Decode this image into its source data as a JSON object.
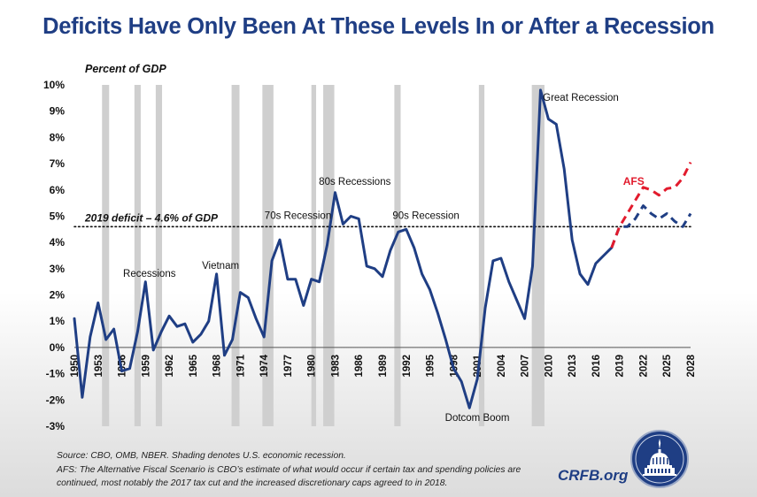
{
  "title": "Deficits Have Only Been At These Levels In or After a Recession",
  "chart_data": {
    "type": "line",
    "ylabel": "Percent of GDP",
    "ylim": [
      -3,
      10
    ],
    "yticks": [
      -3,
      -2,
      -1,
      0,
      1,
      2,
      3,
      4,
      5,
      6,
      7,
      8,
      9,
      10
    ],
    "ytick_labels": [
      "-3%",
      "-2%",
      "-1%",
      "0%",
      "1%",
      "2%",
      "3%",
      "4%",
      "5%",
      "6%",
      "7%",
      "8%",
      "9%",
      "10%"
    ],
    "xlim": [
      1950,
      2028
    ],
    "xticks": [
      1950,
      1953,
      1956,
      1959,
      1962,
      1965,
      1968,
      1971,
      1974,
      1977,
      1980,
      1983,
      1986,
      1989,
      1992,
      1995,
      1998,
      2001,
      2004,
      2007,
      2010,
      2013,
      2016,
      2019,
      2022,
      2025,
      2028
    ],
    "xtick_labels": [
      "1950",
      "1953",
      "1956",
      "1959",
      "1962",
      "1965",
      "1968",
      "1971",
      "1974",
      "1977",
      "1980",
      "1983",
      "1986",
      "1989",
      "1992",
      "1995",
      "1998",
      "2001",
      "2004",
      "2007",
      "2010",
      "2013",
      "2016",
      "2019",
      "2022",
      "2025",
      "2028"
    ],
    "recessions": [
      [
        1953.5,
        1954.4
      ],
      [
        1957.6,
        1958.4
      ],
      [
        1960.3,
        1961.1
      ],
      [
        1969.9,
        1970.9
      ],
      [
        1973.8,
        1975.2
      ],
      [
        1980.0,
        1980.6
      ],
      [
        1981.5,
        1982.9
      ],
      [
        1990.5,
        1991.3
      ],
      [
        2001.2,
        2001.9
      ],
      [
        2007.9,
        2009.5
      ]
    ],
    "series": [
      {
        "name": "",
        "style": "solid",
        "color": "#1f3e84",
        "points": [
          [
            1950,
            1.1
          ],
          [
            1951,
            -1.9
          ],
          [
            1952,
            0.4
          ],
          [
            1953,
            1.7
          ],
          [
            1954,
            0.3
          ],
          [
            1955,
            0.7
          ],
          [
            1956,
            -0.9
          ],
          [
            1957,
            -0.8
          ],
          [
            1958,
            0.6
          ],
          [
            1959,
            2.5
          ],
          [
            1960,
            -0.1
          ],
          [
            1961,
            0.6
          ],
          [
            1962,
            1.2
          ],
          [
            1963,
            0.8
          ],
          [
            1964,
            0.9
          ],
          [
            1965,
            0.2
          ],
          [
            1966,
            0.5
          ],
          [
            1967,
            1.0
          ],
          [
            1968,
            2.8
          ],
          [
            1969,
            -0.3
          ],
          [
            1970,
            0.3
          ],
          [
            1971,
            2.1
          ],
          [
            1972,
            1.9
          ],
          [
            1973,
            1.1
          ],
          [
            1974,
            0.4
          ],
          [
            1975,
            3.3
          ],
          [
            1976,
            4.1
          ],
          [
            1977,
            2.6
          ],
          [
            1978,
            2.6
          ],
          [
            1979,
            1.6
          ],
          [
            1980,
            2.6
          ],
          [
            1981,
            2.5
          ],
          [
            1982,
            3.9
          ],
          [
            1983,
            5.9
          ],
          [
            1984,
            4.7
          ],
          [
            1985,
            5.0
          ],
          [
            1986,
            4.9
          ],
          [
            1987,
            3.1
          ],
          [
            1988,
            3.0
          ],
          [
            1989,
            2.7
          ],
          [
            1990,
            3.7
          ],
          [
            1991,
            4.4
          ],
          [
            1992,
            4.5
          ],
          [
            1993,
            3.8
          ],
          [
            1994,
            2.8
          ],
          [
            1995,
            2.2
          ],
          [
            1996,
            1.3
          ],
          [
            1997,
            0.3
          ],
          [
            1998,
            -0.8
          ],
          [
            1999,
            -1.3
          ],
          [
            2000,
            -2.3
          ],
          [
            2001,
            -1.2
          ],
          [
            2002,
            1.5
          ],
          [
            2003,
            3.3
          ],
          [
            2004,
            3.4
          ],
          [
            2005,
            2.5
          ],
          [
            2006,
            1.8
          ],
          [
            2007,
            1.1
          ],
          [
            2008,
            3.1
          ],
          [
            2009,
            9.8
          ],
          [
            2010,
            8.7
          ],
          [
            2011,
            8.5
          ],
          [
            2012,
            6.8
          ],
          [
            2013,
            4.1
          ],
          [
            2014,
            2.8
          ],
          [
            2015,
            2.4
          ],
          [
            2016,
            3.2
          ],
          [
            2017,
            3.5
          ],
          [
            2018,
            3.8
          ]
        ]
      },
      {
        "name": "",
        "style": "dashed",
        "color": "#1f3e84",
        "points": [
          [
            2018,
            3.8
          ],
          [
            2019,
            4.6
          ],
          [
            2020,
            4.6
          ],
          [
            2021,
            4.9
          ],
          [
            2022,
            5.4
          ],
          [
            2023,
            5.1
          ],
          [
            2024,
            4.9
          ],
          [
            2025,
            5.1
          ],
          [
            2026,
            4.8
          ],
          [
            2027,
            4.6
          ],
          [
            2028,
            5.1
          ]
        ]
      },
      {
        "name": "AFS",
        "style": "dashed",
        "color": "#e21b2d",
        "points": [
          [
            2018,
            3.8
          ],
          [
            2019,
            4.6
          ],
          [
            2020,
            5.1
          ],
          [
            2021,
            5.6
          ],
          [
            2022,
            6.1
          ],
          [
            2023,
            6.0
          ],
          [
            2024,
            5.8
          ],
          [
            2025,
            6.05
          ],
          [
            2026,
            6.1
          ],
          [
            2027,
            6.45
          ],
          [
            2028,
            7.05
          ]
        ]
      }
    ],
    "reference_line": {
      "value": 4.6,
      "label": "2019 deficit – 4.6% of GDP",
      "style": "dotted"
    },
    "annotations": [
      {
        "text": "Recessions",
        "x": 1959.5,
        "y": 2.7
      },
      {
        "text": "Vietnam",
        "x": 1968.5,
        "y": 3.0
      },
      {
        "text": "70s Recession",
        "x": 1978.3,
        "y": 4.9
      },
      {
        "text": "80s Recessions",
        "x": 1985.5,
        "y": 6.2
      },
      {
        "text": "90s Recession",
        "x": 1994.5,
        "y": 4.9
      },
      {
        "text": "Dotcom Boom",
        "x": 2001.0,
        "y": -2.8
      },
      {
        "text": "Great Recession",
        "x": 2009.3,
        "y": 9.4,
        "anchor": "start"
      },
      {
        "text": "AFS",
        "x": 2020.8,
        "y": 6.2,
        "emphasis": true
      }
    ]
  },
  "footer": {
    "source": "Source: CBO, OMB, NBER. Shading denotes U.S. economic recession.",
    "afs_note": "AFS: The Alternative Fiscal Scenario is CBO’s estimate of what would occur if certain tax and spending policies are continued, most notably the 2017 tax cut and the increased discretionary caps agreed to in 2018."
  },
  "brand": {
    "text": "CRFB.org"
  },
  "logo": {
    "icon": "capitol-dome-seal-icon"
  }
}
